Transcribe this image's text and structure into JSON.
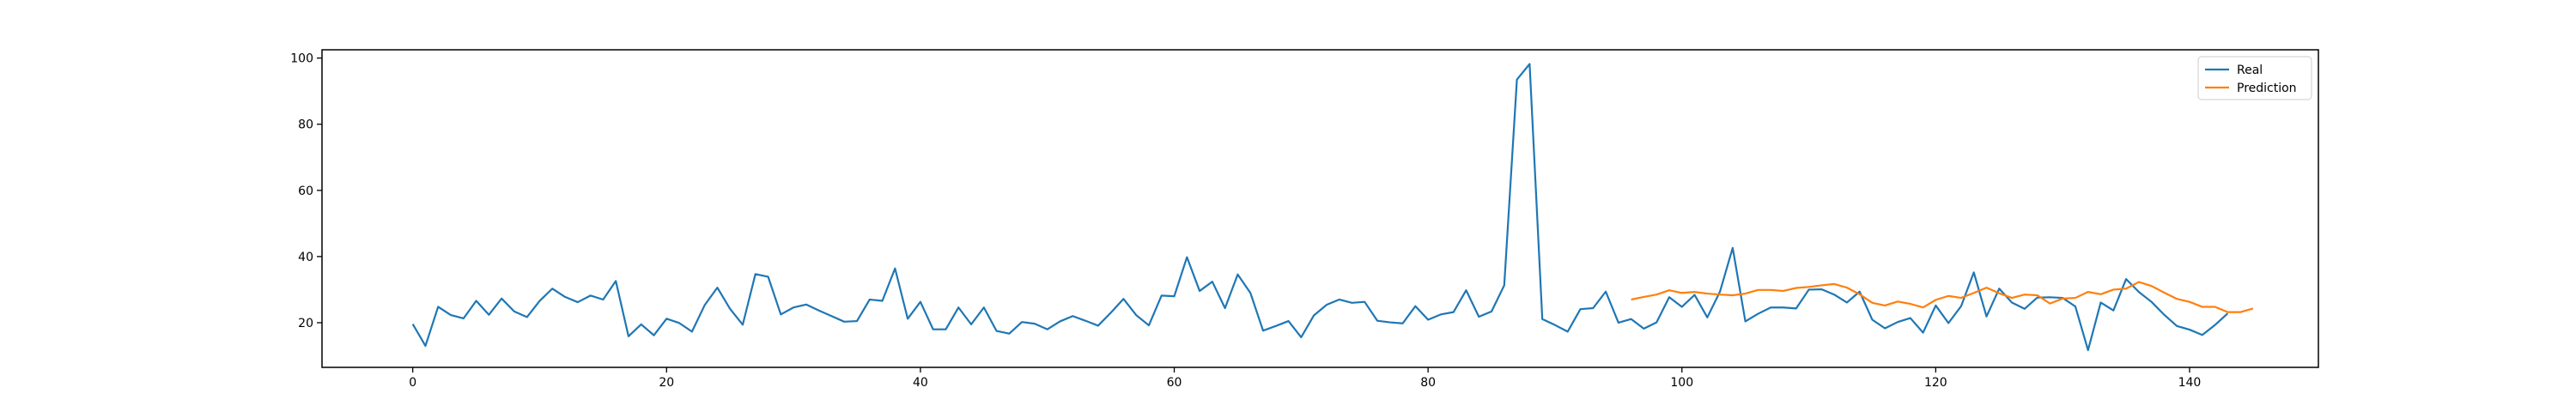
{
  "chart_data": {
    "type": "line",
    "title": "",
    "xlabel": "",
    "ylabel": "",
    "xlim": [
      -7.15,
      150.15
    ],
    "ylim": [
      6.5,
      102.5
    ],
    "xticks": [
      0,
      20,
      40,
      60,
      80,
      100,
      120,
      140
    ],
    "yticks": [
      20,
      40,
      60,
      80,
      100
    ],
    "grid": false,
    "legend": "top-right",
    "series": [
      {
        "name": "Real",
        "color": "#1f77b4",
        "x_start": 0,
        "values": [
          19.6,
          13.0,
          24.8,
          22.3,
          21.3,
          26.6,
          22.4,
          27.3,
          23.4,
          21.7,
          26.6,
          30.3,
          27.8,
          26.2,
          28.2,
          27.0,
          32.6,
          15.9,
          19.5,
          16.2,
          21.2,
          19.9,
          17.3,
          25.3,
          30.6,
          24.2,
          19.4,
          34.7,
          33.9,
          22.5,
          24.6,
          25.5,
          23.7,
          22.0,
          20.3,
          20.5,
          27.0,
          26.6,
          36.4,
          21.2,
          26.3,
          18.0,
          18.0,
          24.6,
          19.5,
          24.6,
          17.5,
          16.7,
          20.2,
          19.7,
          18.0,
          20.4,
          22.0,
          20.6,
          19.1,
          23.0,
          27.2,
          22.3,
          19.2,
          28.2,
          28.0,
          39.8,
          29.6,
          32.4,
          24.4,
          34.6,
          29.0,
          17.6,
          19.0,
          20.5,
          15.6,
          22.2,
          25.4,
          27.0,
          26.0,
          26.3,
          20.6,
          20.1,
          19.8,
          25.0,
          20.9,
          22.5,
          23.2,
          29.8,
          21.8,
          23.4,
          31.3,
          93.5,
          98.2,
          21.1,
          19.3,
          17.3,
          24.1,
          24.4,
          29.4,
          20.0,
          21.1,
          18.2,
          20.1,
          27.7,
          24.8,
          28.4,
          21.6,
          29.4,
          42.6,
          20.4,
          22.7,
          24.6,
          24.6,
          24.3,
          30.0,
          30.1,
          28.5,
          26.1,
          29.4,
          20.9,
          18.3,
          20.2,
          21.4,
          17.0,
          25.2,
          19.9,
          25.0,
          35.2,
          21.9,
          30.3,
          26.1,
          24.2,
          27.6,
          27.7,
          27.5,
          24.9,
          11.7,
          26.1,
          23.7,
          33.2,
          29.3,
          26.3,
          22.4,
          19.0,
          17.9,
          16.3,
          19.3,
          22.8
        ]
      },
      {
        "name": "Prediction",
        "color": "#ff7f0e",
        "x_start": 96,
        "values": [
          27.0,
          27.8,
          28.5,
          29.8,
          29.0,
          29.3,
          28.8,
          28.5,
          28.3,
          28.8,
          29.9,
          29.9,
          29.6,
          30.5,
          30.8,
          31.3,
          31.7,
          30.6,
          28.6,
          26.0,
          25.2,
          26.4,
          25.7,
          24.6,
          26.9,
          28.1,
          27.5,
          29.0,
          30.6,
          28.9,
          27.5,
          28.5,
          28.3,
          25.8,
          27.3,
          27.5,
          29.3,
          28.6,
          30.0,
          30.3,
          32.3,
          31.1,
          29.1,
          27.2,
          26.3,
          24.8,
          24.8,
          23.2,
          23.2,
          24.3
        ]
      }
    ]
  }
}
